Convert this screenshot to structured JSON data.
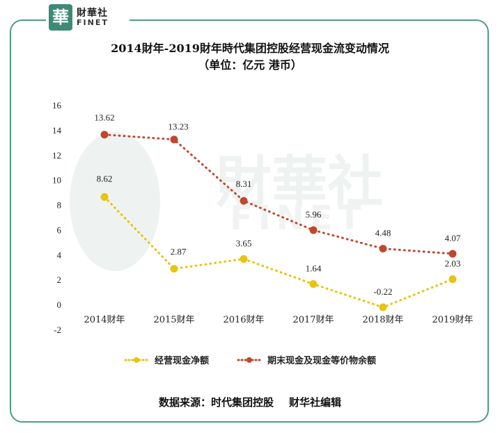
{
  "logo": {
    "cn": "財華社",
    "en": "FINET",
    "mark": "華"
  },
  "title_line1": "2014財年-2019財年時代集团控股经营现金流变动情况",
  "title_line2": "（单位：亿元 港币）",
  "source_label": "数据来源：时代集团控股",
  "source_org": "财华社编辑",
  "colors": {
    "frame": "#4e9a86",
    "series1": "#e6c40f",
    "series2": "#c0472f"
  },
  "chart_data": {
    "type": "line",
    "title": "2014財年-2019財年時代集团控股经营现金流变动情况",
    "subtitle": "（单位：亿元 港币）",
    "categories": [
      "2014财年",
      "2015财年",
      "2016财年",
      "2017财年",
      "2018财年",
      "2019财年"
    ],
    "ylim": [
      -2,
      16
    ],
    "yticks": [
      -2,
      0,
      2,
      4,
      6,
      8,
      10,
      12,
      14,
      16
    ],
    "grid": false,
    "legend_position": "bottom",
    "series": [
      {
        "name": "经营现金净额",
        "values": [
          8.62,
          2.87,
          3.65,
          1.64,
          -0.22,
          2.03
        ],
        "labels": [
          "8.62",
          "2.87",
          "3.65",
          "1.64",
          "-0.22",
          "2.03"
        ],
        "color": "#e6c40f"
      },
      {
        "name": "期末现金及现金等价物余额",
        "values": [
          13.62,
          13.23,
          8.31,
          5.96,
          4.48,
          4.07
        ],
        "labels": [
          "13.62",
          "13.23",
          "8.31",
          "5.96",
          "4.48",
          "4.07"
        ],
        "color": "#c0472f"
      }
    ]
  }
}
